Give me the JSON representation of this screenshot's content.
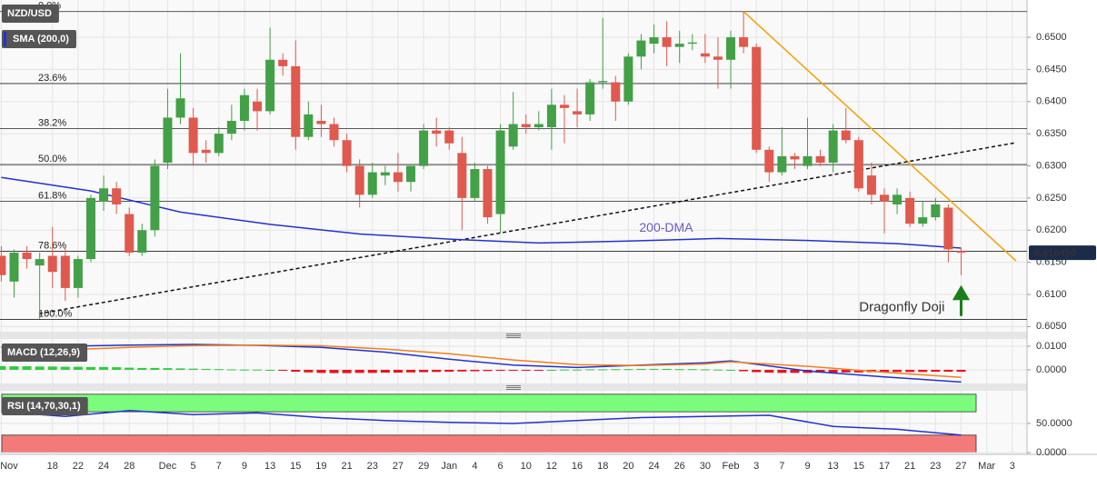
{
  "chart_data": [
    {
      "type": "candlestick",
      "title": "NZD/USD",
      "indicator": "SMA (200,0)",
      "xlim": [
        -0.1,
        80.15
      ],
      "ylim": [
        0.6042,
        0.6558
      ],
      "xticks": [
        {
          "value": 0,
          "label": "Nov"
        },
        {
          "value": 4,
          "label": "18"
        },
        {
          "value": 6,
          "label": "22"
        },
        {
          "value": 8,
          "label": "24"
        },
        {
          "value": 10,
          "label": "28"
        },
        {
          "value": 13,
          "label": "Dec"
        },
        {
          "value": 15,
          "label": "5"
        },
        {
          "value": 17,
          "label": "7"
        },
        {
          "value": 19,
          "label": "9"
        },
        {
          "value": 21,
          "label": "13"
        },
        {
          "value": 23,
          "label": "15"
        },
        {
          "value": 25,
          "label": "19"
        },
        {
          "value": 27,
          "label": "21"
        },
        {
          "value": 29,
          "label": "23"
        },
        {
          "value": 31,
          "label": "27"
        },
        {
          "value": 33,
          "label": "29"
        },
        {
          "value": 35,
          "label": "Jan"
        },
        {
          "value": 37,
          "label": "4"
        },
        {
          "value": 39,
          "label": "6"
        },
        {
          "value": 41,
          "label": "10"
        },
        {
          "value": 43,
          "label": "12"
        },
        {
          "value": 45,
          "label": "16"
        },
        {
          "value": 47,
          "label": "18"
        },
        {
          "value": 49,
          "label": "20"
        },
        {
          "value": 51,
          "label": "24"
        },
        {
          "value": 53,
          "label": "26"
        },
        {
          "value": 55,
          "label": "30"
        },
        {
          "value": 57,
          "label": "Feb"
        },
        {
          "value": 59,
          "label": "3"
        },
        {
          "value": 61,
          "label": "7"
        },
        {
          "value": 63,
          "label": "9"
        },
        {
          "value": 65,
          "label": "13"
        },
        {
          "value": 67,
          "label": "15"
        },
        {
          "value": 69,
          "label": "17"
        },
        {
          "value": 71,
          "label": "21"
        },
        {
          "value": 73,
          "label": "23"
        },
        {
          "value": 75,
          "label": "27"
        },
        {
          "value": 77,
          "label": "Mar"
        },
        {
          "value": 79,
          "label": "3"
        }
      ],
      "yticks": [
        {
          "value": 0.65,
          "label": "0.6500"
        },
        {
          "value": 0.645,
          "label": "0.6450"
        },
        {
          "value": 0.64,
          "label": "0.6400"
        },
        {
          "value": 0.635,
          "label": "0.6350"
        },
        {
          "value": 0.63,
          "label": "0.6300"
        },
        {
          "value": 0.625,
          "label": "0.6250"
        },
        {
          "value": 0.62,
          "label": "0.6200"
        },
        {
          "value": 0.615,
          "label": "0.6150"
        },
        {
          "value": 0.61,
          "label": "0.6100"
        },
        {
          "value": 0.605,
          "label": "0.6050"
        }
      ],
      "grid": true,
      "up_color": "#43a047",
      "down_color": "#e0594f",
      "candles": [
        [
          0.616,
          0.6175,
          0.612,
          0.613
        ],
        [
          0.612,
          0.617,
          0.6095,
          0.6165
        ],
        [
          0.6165,
          0.6175,
          0.614,
          0.6155
        ],
        [
          0.6145,
          0.6165,
          0.6062,
          0.6155
        ],
        [
          0.616,
          0.6205,
          0.611,
          0.6135
        ],
        [
          0.616,
          0.6175,
          0.609,
          0.611
        ],
        [
          0.611,
          0.616,
          0.6095,
          0.6155
        ],
        [
          0.6155,
          0.6255,
          0.615,
          0.625
        ],
        [
          0.6245,
          0.6285,
          0.623,
          0.6265
        ],
        [
          0.6265,
          0.6275,
          0.6225,
          0.624
        ],
        [
          0.6225,
          0.6235,
          0.616,
          0.6165
        ],
        [
          0.6165,
          0.621,
          0.616,
          0.62
        ],
        [
          0.62,
          0.631,
          0.619,
          0.63
        ],
        [
          0.6305,
          0.642,
          0.6295,
          0.6375
        ],
        [
          0.6375,
          0.6475,
          0.6365,
          0.6405
        ],
        [
          0.6375,
          0.639,
          0.63,
          0.632
        ],
        [
          0.6325,
          0.634,
          0.6305,
          0.632
        ],
        [
          0.632,
          0.636,
          0.6315,
          0.635
        ],
        [
          0.635,
          0.6395,
          0.634,
          0.637
        ],
        [
          0.637,
          0.642,
          0.6355,
          0.641
        ],
        [
          0.64,
          0.642,
          0.6355,
          0.6385
        ],
        [
          0.6385,
          0.6515,
          0.638,
          0.6465
        ],
        [
          0.6465,
          0.6475,
          0.644,
          0.6455
        ],
        [
          0.6455,
          0.6495,
          0.6325,
          0.6345
        ],
        [
          0.6345,
          0.64,
          0.634,
          0.638
        ],
        [
          0.637,
          0.6395,
          0.6345,
          0.6365
        ],
        [
          0.6365,
          0.6375,
          0.633,
          0.634
        ],
        [
          0.634,
          0.635,
          0.629,
          0.63
        ],
        [
          0.63,
          0.631,
          0.6235,
          0.6255
        ],
        [
          0.6255,
          0.6305,
          0.625,
          0.629
        ],
        [
          0.6285,
          0.63,
          0.627,
          0.629
        ],
        [
          0.629,
          0.632,
          0.626,
          0.6275
        ],
        [
          0.6275,
          0.63,
          0.626,
          0.63
        ],
        [
          0.63,
          0.6365,
          0.6295,
          0.6355
        ],
        [
          0.6355,
          0.6375,
          0.633,
          0.635
        ],
        [
          0.6355,
          0.636,
          0.6325,
          0.6335
        ],
        [
          0.632,
          0.6345,
          0.62,
          0.625
        ],
        [
          0.625,
          0.6305,
          0.6245,
          0.6295
        ],
        [
          0.6295,
          0.63,
          0.621,
          0.622
        ],
        [
          0.6225,
          0.6365,
          0.6195,
          0.6355
        ],
        [
          0.633,
          0.6415,
          0.6325,
          0.6365
        ],
        [
          0.6365,
          0.638,
          0.635,
          0.636
        ],
        [
          0.636,
          0.6385,
          0.6355,
          0.6365
        ],
        [
          0.636,
          0.642,
          0.6325,
          0.6395
        ],
        [
          0.6395,
          0.641,
          0.6335,
          0.639
        ],
        [
          0.6385,
          0.642,
          0.636,
          0.638
        ],
        [
          0.638,
          0.6435,
          0.637,
          0.643
        ],
        [
          0.643,
          0.653,
          0.642,
          0.6432
        ],
        [
          0.643,
          0.644,
          0.637,
          0.64
        ],
        [
          0.64,
          0.6475,
          0.6395,
          0.647
        ],
        [
          0.647,
          0.6505,
          0.645,
          0.6495
        ],
        [
          0.649,
          0.652,
          0.6475,
          0.65
        ],
        [
          0.65,
          0.6525,
          0.6455,
          0.6485
        ],
        [
          0.6485,
          0.651,
          0.646,
          0.649
        ],
        [
          0.649,
          0.6505,
          0.648,
          0.6492
        ],
        [
          0.6475,
          0.6505,
          0.646,
          0.647
        ],
        [
          0.647,
          0.65,
          0.642,
          0.6465
        ],
        [
          0.6465,
          0.651,
          0.642,
          0.65
        ],
        [
          0.65,
          0.654,
          0.6475,
          0.6485
        ],
        [
          0.6485,
          0.649,
          0.632,
          0.6325
        ],
        [
          0.6325,
          0.633,
          0.6275,
          0.629
        ],
        [
          0.629,
          0.636,
          0.6285,
          0.6315
        ],
        [
          0.6315,
          0.632,
          0.6295,
          0.631
        ],
        [
          0.63,
          0.6375,
          0.6295,
          0.6315
        ],
        [
          0.6315,
          0.6325,
          0.63,
          0.6305
        ],
        [
          0.6305,
          0.6365,
          0.629,
          0.6355
        ],
        [
          0.6355,
          0.639,
          0.6335,
          0.634
        ],
        [
          0.634,
          0.6345,
          0.626,
          0.6265
        ],
        [
          0.6285,
          0.6305,
          0.624,
          0.6255
        ],
        [
          0.6255,
          0.6265,
          0.6195,
          0.6245
        ],
        [
          0.624,
          0.6265,
          0.6225,
          0.6255
        ],
        [
          0.625,
          0.626,
          0.6205,
          0.621
        ],
        [
          0.621,
          0.6245,
          0.6205,
          0.622
        ],
        [
          0.622,
          0.625,
          0.6215,
          0.624
        ],
        [
          0.6235,
          0.624,
          0.615,
          0.617
        ],
        [
          0.6168,
          0.6172,
          0.613,
          0.6165
        ]
      ],
      "sma": {
        "name": "200-DMA",
        "color": "#2233cc",
        "x": [
          0,
          7,
          14,
          21,
          28,
          35,
          42,
          49,
          56,
          63,
          70,
          75
        ],
        "values": [
          0.6282,
          0.6261,
          0.6228,
          0.6209,
          0.6194,
          0.6186,
          0.618,
          0.6183,
          0.6187,
          0.6184,
          0.6179,
          0.6172
        ]
      },
      "trendlines": [
        {
          "color": "#f5a000",
          "dashed": false,
          "x": [
            58,
            79.3
          ],
          "values": [
            0.654,
            0.6152
          ]
        },
        {
          "color": "#111111",
          "dashed": true,
          "x": [
            2.95,
            79.3
          ],
          "values": [
            0.607,
            0.6336
          ]
        }
      ],
      "fib_levels": [
        {
          "label": "0.0%",
          "value": 0.654
        },
        {
          "label": "23.6%",
          "value": 0.6428
        },
        {
          "label": "38.2%",
          "value": 0.6358
        },
        {
          "label": "50.0%",
          "value": 0.6302
        },
        {
          "label": "61.8%",
          "value": 0.6245
        },
        {
          "label": "78.6%",
          "value": 0.6167
        },
        {
          "label": "100.0%",
          "value": 0.6061
        }
      ],
      "last_price": {
        "value": 0.61649,
        "label": "0.616490"
      },
      "annotation": {
        "text": "Dragonfly Doji",
        "color": "#3a9a3a"
      }
    },
    {
      "type": "macd",
      "title": "MACD (12,26,9)",
      "ylim": [
        -0.0058,
        0.0131
      ],
      "yticks": [
        {
          "value": 0.01,
          "label": "0.0100"
        },
        {
          "value": 0,
          "label": "0.0000"
        }
      ],
      "histogram": [
        0.0016,
        0.0015,
        0.0015,
        0.0014,
        0.0014,
        0.0013,
        0.0013,
        0.0012,
        0.0012,
        0.0011,
        0.0009,
        0.0008,
        0.0008,
        0.0007,
        0.0006,
        0.0005,
        0.0004,
        0.0003,
        0.0002,
        0.0001,
        0.0001,
        0,
        -0.0004,
        -0.0008,
        -0.0011,
        -0.0013,
        -0.0014,
        -0.0014,
        -0.0013,
        -0.0013,
        -0.0012,
        -0.0012,
        -0.0011,
        -0.001,
        -0.0009,
        -0.0008,
        -0.0007,
        -0.0006,
        -0.0005,
        -0.0004,
        -0.0003,
        -0.0002,
        -0.0001,
        0,
        0.0001,
        0.0001,
        0.0002,
        0.0002,
        0.0003,
        0.0003,
        0.0004,
        0.0004,
        0.0004,
        0.0003,
        0.0003,
        0.0002,
        0.0001,
        0,
        -0.0006,
        -0.001,
        -0.0012,
        -0.0013,
        -0.0013,
        -0.0013,
        -0.0012,
        -0.0012,
        -0.0011,
        -0.0011,
        -0.001,
        -0.001,
        -0.0009,
        -0.0009,
        -0.0009,
        -0.0008,
        -0.0008,
        -0.0008
      ],
      "up_color": "#2ecc40",
      "down_color": "#e8141e",
      "series": [
        {
          "color": "#2233cc",
          "x": [
            0,
            5,
            10,
            15,
            20,
            25,
            30,
            35,
            40,
            45,
            50,
            55,
            57,
            63,
            69,
            75
          ],
          "values": [
            0.0095,
            0.01,
            0.0105,
            0.0108,
            0.0104,
            0.0095,
            0.0075,
            0.0045,
            0.002,
            0.001,
            0.002,
            0.003,
            0.0038,
            -0.0005,
            -0.003,
            -0.0052
          ]
        },
        {
          "color": "#f08020",
          "x": [
            0,
            5,
            10,
            15,
            20,
            25,
            30,
            35,
            40,
            45,
            50,
            55,
            57,
            63,
            69,
            75
          ],
          "values": [
            0.0075,
            0.0085,
            0.0095,
            0.0103,
            0.0105,
            0.0102,
            0.0088,
            0.0068,
            0.0042,
            0.0022,
            0.0018,
            0.0025,
            0.0034,
            0.0015,
            -0.001,
            -0.0032
          ]
        }
      ]
    },
    {
      "type": "line",
      "title": "RSI (14,70,30,1)",
      "ylim": [
        -3,
        106
      ],
      "yticks": [
        {
          "value": 50,
          "label": "50.0000"
        },
        {
          "value": 0,
          "label": "0.0000"
        }
      ],
      "bands": [
        {
          "from": 70,
          "to": 100,
          "color": "#7cfc7c"
        },
        {
          "from": 0,
          "to": 30,
          "color": "#f47a7a"
        }
      ],
      "series": [
        {
          "color": "#2233cc",
          "x": [
            0,
            5,
            10,
            15,
            20,
            25,
            30,
            35,
            40,
            45,
            50,
            55,
            60,
            65,
            70,
            75
          ],
          "values": [
            70,
            62,
            72,
            65,
            68,
            60,
            55,
            52,
            50,
            55,
            60,
            62,
            64,
            45,
            40,
            30
          ]
        }
      ]
    }
  ]
}
